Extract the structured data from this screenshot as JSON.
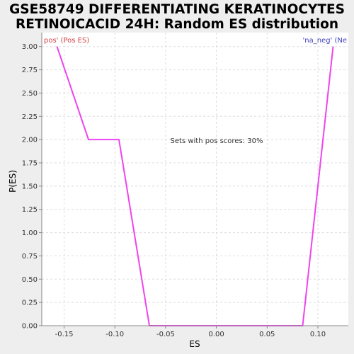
{
  "colors": {
    "background": "#eeeeee",
    "plot_background": "#ffffff",
    "line": "#ee44ee",
    "pos_label": "#d04040",
    "neg_label": "#4040c0",
    "grid": "#dddddd"
  },
  "chart_data": {
    "type": "line",
    "title_lines": [
      "GSE58749 DIFFERENTIATING KERATINOCYTES",
      "RETINOICACID 24H: Random ES distribution"
    ],
    "xlabel": "ES",
    "ylabel": "P(ES)",
    "xlim": [
      -0.172,
      0.13
    ],
    "ylim": [
      0.0,
      3.15
    ],
    "x_ticks": [
      -0.15,
      -0.1,
      -0.05,
      0.0,
      0.05,
      0.1
    ],
    "x_tick_labels": [
      "-0.15",
      "-0.10",
      "-0.05",
      "0.00",
      "0.05",
      "0.10"
    ],
    "y_ticks": [
      0.0,
      0.25,
      0.5,
      0.75,
      1.0,
      1.25,
      1.5,
      1.75,
      2.0,
      2.25,
      2.5,
      2.75,
      3.0
    ],
    "y_tick_labels": [
      "0.00",
      "0.25",
      "0.50",
      "0.75",
      "1.00",
      "1.25",
      "1.50",
      "1.75",
      "2.00",
      "2.25",
      "2.50",
      "2.75",
      "3.00"
    ],
    "grid": true,
    "series": [
      {
        "name": "P(ES)",
        "x": [
          -0.157,
          -0.126,
          -0.096,
          -0.066,
          0.085,
          0.115
        ],
        "y": [
          3.0,
          2.0,
          2.0,
          0.0,
          0.0,
          3.0
        ]
      }
    ],
    "annotations": {
      "pos_label": "pos' (Pos ES)",
      "neg_label": "'na_neg' (Ne",
      "center_text": "Sets with pos scores: 30%"
    }
  }
}
